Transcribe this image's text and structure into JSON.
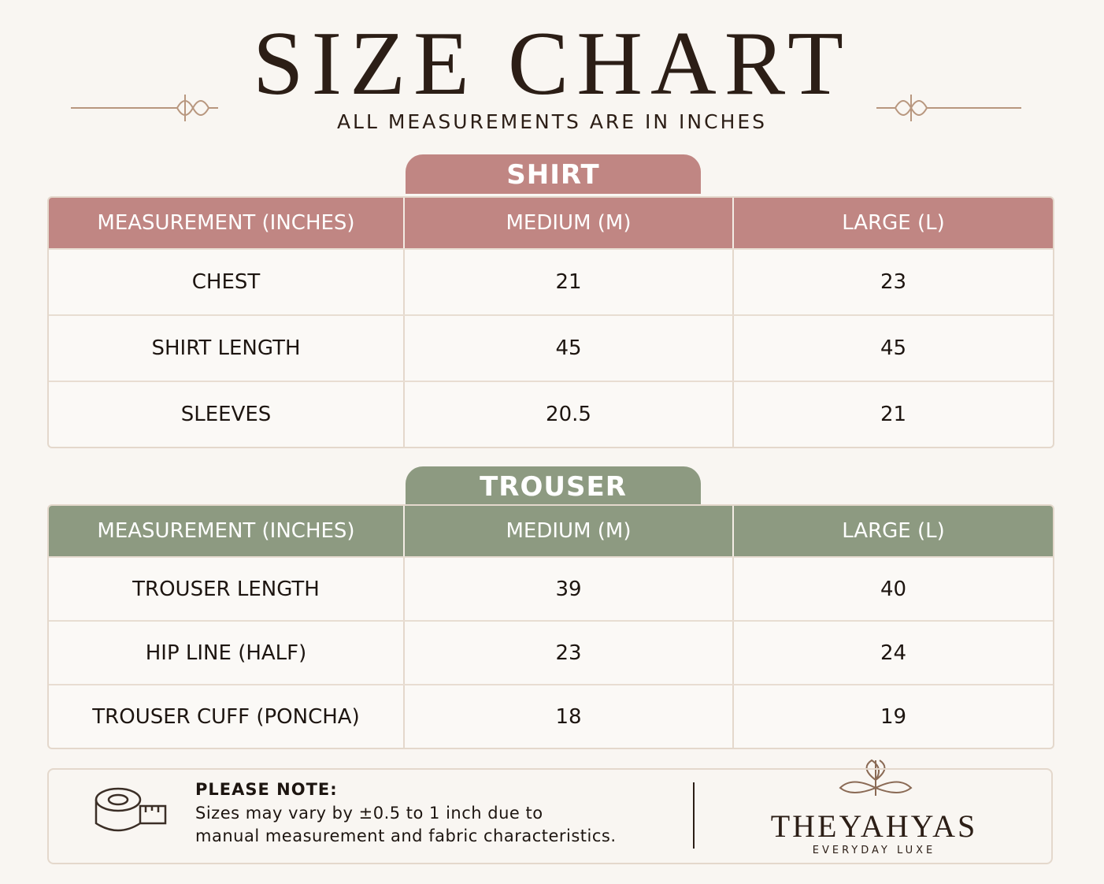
{
  "header": {
    "title": "SIZE CHART",
    "subtitle": "ALL MEASUREMENTS ARE IN INCHES"
  },
  "tables": [
    {
      "label": "SHIRT",
      "color": "#c08683",
      "columns": [
        "MEASUREMENT (INCHES)",
        "MEDIUM (M)",
        "LARGE (L)"
      ],
      "rows": [
        [
          "CHEST",
          21,
          23
        ],
        [
          "SHIRT LENGTH",
          45,
          45
        ],
        [
          "SLEEVES",
          20.5,
          21
        ]
      ]
    },
    {
      "label": "TROUSER",
      "color": "#8d9a81",
      "columns": [
        "MEASUREMENT (INCHES)",
        "MEDIUM (M)",
        "LARGE (L)"
      ],
      "rows": [
        [
          "TROUSER LENGTH",
          39,
          40
        ],
        [
          "HIP LINE (HALF)",
          23,
          24
        ],
        [
          "TROUSER CUFF (PONCHA)",
          18,
          19
        ]
      ]
    }
  ],
  "note": {
    "title": "PLEASE NOTE:",
    "lines": [
      "Sizes may vary by ±0.5 to 1 inch due to",
      "manual measurement and fabric characteristics."
    ]
  },
  "brand": {
    "name": "THEYAHYAS",
    "tagline": "EVERYDAY LUXE"
  }
}
